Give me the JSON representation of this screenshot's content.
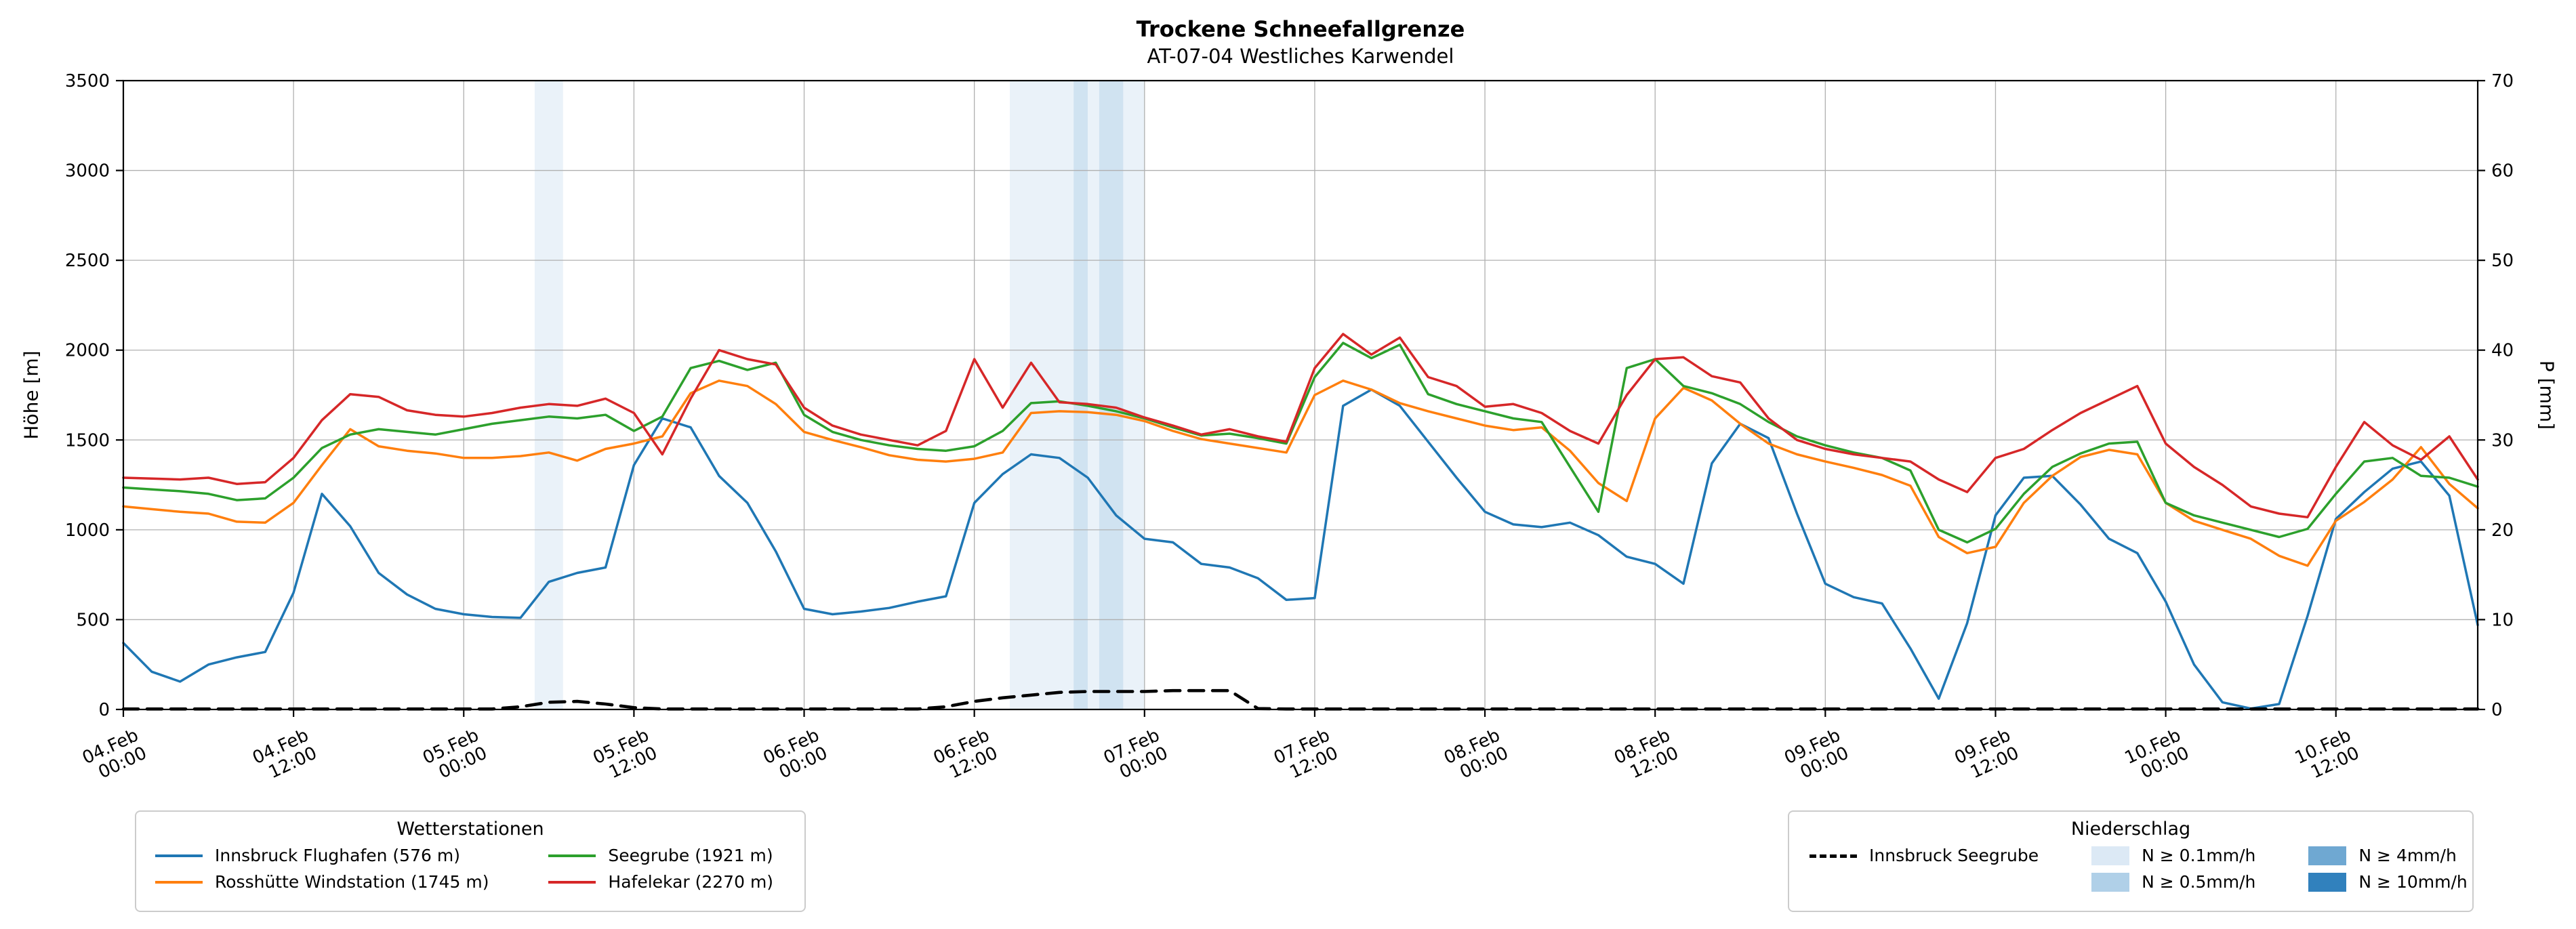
{
  "title": "Trockene Schneefallgrenze",
  "subtitle": "AT-07-04 Westliches Karwendel",
  "axes": {
    "y_left": {
      "label": "Höhe [m]",
      "min": 0,
      "max": 3500,
      "step": 500
    },
    "y_right": {
      "label": "P [mm]",
      "min": 0,
      "max": 70,
      "step": 10
    },
    "x": {
      "min_hours": 0,
      "max_hours": 166,
      "tick_hours": [
        0,
        12,
        24,
        36,
        48,
        60,
        72,
        84,
        96,
        108,
        120,
        132,
        144,
        156
      ],
      "tick_labels": [
        [
          "04.Feb",
          "00:00"
        ],
        [
          "04.Feb",
          "12:00"
        ],
        [
          "05.Feb",
          "00:00"
        ],
        [
          "05.Feb",
          "12:00"
        ],
        [
          "06.Feb",
          "00:00"
        ],
        [
          "06.Feb",
          "12:00"
        ],
        [
          "07.Feb",
          "00:00"
        ],
        [
          "07.Feb",
          "12:00"
        ],
        [
          "08.Feb",
          "00:00"
        ],
        [
          "08.Feb",
          "12:00"
        ],
        [
          "09.Feb",
          "00:00"
        ],
        [
          "09.Feb",
          "12:00"
        ],
        [
          "10.Feb",
          "00:00"
        ],
        [
          "10.Feb",
          "12:00"
        ]
      ]
    }
  },
  "legend_stations": {
    "title": "Wetterstationen",
    "items": [
      {
        "label": "Innsbruck Flughafen (576 m)",
        "color": "#1f77b4"
      },
      {
        "label": "Rosshütte Windstation (1745 m)",
        "color": "#ff7f0e"
      },
      {
        "label": "Seegrube (1921 m)",
        "color": "#2ca02c"
      },
      {
        "label": "Hafelekar (2270 m)",
        "color": "#d62728"
      }
    ]
  },
  "legend_precip": {
    "title": "Niederschlag",
    "line_item": {
      "label": "Innsbruck Seegrube",
      "color": "#000000"
    },
    "patch_items": [
      {
        "label": "N ≥ 0.1mm/h",
        "color": "#dce9f5"
      },
      {
        "label": "N ≥ 0.5mm/h",
        "color": "#b0d0e8"
      },
      {
        "label": "N ≥ 4mm/h",
        "color": "#6fa8d2"
      },
      {
        "label": "N ≥ 10mm/h",
        "color": "#3181bd"
      }
    ]
  },
  "chart_data": {
    "type": "line",
    "x_unit": "hours since 04.Feb 00:00",
    "x_hours": [
      0,
      2,
      4,
      6,
      8,
      10,
      12,
      14,
      16,
      18,
      20,
      22,
      24,
      26,
      28,
      30,
      32,
      34,
      36,
      38,
      40,
      42,
      44,
      46,
      48,
      50,
      52,
      54,
      56,
      58,
      60,
      62,
      64,
      66,
      68,
      70,
      72,
      74,
      76,
      78,
      80,
      82,
      84,
      86,
      88,
      90,
      92,
      94,
      96,
      98,
      100,
      102,
      104,
      106,
      108,
      110,
      112,
      114,
      116,
      118,
      120,
      122,
      124,
      126,
      128,
      130,
      132,
      134,
      136,
      138,
      140,
      142,
      144,
      146,
      148,
      150,
      152,
      154,
      156,
      158,
      160,
      162,
      164,
      166
    ],
    "series": [
      {
        "id": "innsbruck-flughafen",
        "name": "Innsbruck Flughafen (576 m)",
        "color": "#1f77b4",
        "axis": "left",
        "dash": false,
        "values": [
          370,
          210,
          155,
          250,
          290,
          320,
          650,
          1200,
          1020,
          760,
          640,
          560,
          530,
          515,
          510,
          710,
          760,
          790,
          1360,
          1620,
          1570,
          1300,
          1150,
          880,
          560,
          530,
          545,
          565,
          600,
          630,
          1150,
          1310,
          1420,
          1400,
          1290,
          1080,
          950,
          930,
          810,
          790,
          730,
          610,
          620,
          1690,
          1780,
          1690,
          1490,
          1290,
          1100,
          1030,
          1015,
          1040,
          970,
          850,
          810,
          700,
          1370,
          1590,
          1510,
          1090,
          700,
          625,
          590,
          340,
          60,
          480,
          1080,
          1290,
          1300,
          1140,
          950,
          870,
          600,
          250,
          40,
          5,
          30,
          520,
          1060,
          1210,
          1340,
          1380,
          1190,
          470
        ]
      },
      {
        "id": "rosshuette-windstation",
        "name": "Rosshütte Windstation (1745 m)",
        "color": "#ff7f0e",
        "axis": "left",
        "dash": false,
        "values": [
          1130,
          1115,
          1100,
          1090,
          1045,
          1040,
          1150,
          1360,
          1560,
          1465,
          1440,
          1425,
          1400,
          1400,
          1410,
          1430,
          1385,
          1450,
          1480,
          1520,
          1760,
          1830,
          1800,
          1700,
          1545,
          1500,
          1460,
          1415,
          1390,
          1380,
          1395,
          1430,
          1650,
          1660,
          1655,
          1640,
          1605,
          1550,
          1505,
          1480,
          1455,
          1430,
          1750,
          1830,
          1780,
          1705,
          1660,
          1620,
          1580,
          1555,
          1570,
          1440,
          1260,
          1160,
          1620,
          1790,
          1720,
          1590,
          1480,
          1420,
          1380,
          1345,
          1305,
          1245,
          960,
          870,
          905,
          1150,
          1300,
          1405,
          1445,
          1420,
          1150,
          1050,
          1000,
          950,
          855,
          800,
          1050,
          1155,
          1280,
          1460,
          1255,
          1120
        ]
      },
      {
        "id": "seegrube",
        "name": "Seegrube (1921 m)",
        "color": "#2ca02c",
        "axis": "left",
        "dash": false,
        "values": [
          1235,
          1225,
          1215,
          1200,
          1165,
          1175,
          1290,
          1455,
          1530,
          1560,
          1545,
          1530,
          1560,
          1590,
          1610,
          1630,
          1620,
          1640,
          1550,
          1630,
          1900,
          1940,
          1890,
          1930,
          1640,
          1545,
          1500,
          1470,
          1450,
          1440,
          1465,
          1550,
          1705,
          1715,
          1690,
          1660,
          1620,
          1570,
          1525,
          1535,
          1510,
          1480,
          1850,
          2040,
          1955,
          2030,
          1755,
          1700,
          1660,
          1620,
          1600,
          1350,
          1100,
          1900,
          1950,
          1800,
          1760,
          1700,
          1600,
          1520,
          1470,
          1430,
          1400,
          1330,
          1000,
          930,
          1005,
          1200,
          1350,
          1425,
          1480,
          1490,
          1150,
          1080,
          1040,
          1000,
          960,
          1005,
          1200,
          1380,
          1400,
          1300,
          1290,
          1240
        ]
      },
      {
        "id": "hafelekar",
        "name": "Hafelekar (2270 m)",
        "color": "#d62728",
        "axis": "left",
        "dash": false,
        "values": [
          1290,
          1285,
          1280,
          1290,
          1255,
          1265,
          1400,
          1610,
          1755,
          1740,
          1665,
          1640,
          1630,
          1650,
          1680,
          1700,
          1690,
          1730,
          1650,
          1420,
          1730,
          2000,
          1950,
          1920,
          1680,
          1580,
          1530,
          1500,
          1470,
          1550,
          1950,
          1680,
          1930,
          1710,
          1700,
          1680,
          1625,
          1580,
          1530,
          1560,
          1520,
          1490,
          1900,
          2090,
          1975,
          2070,
          1850,
          1800,
          1685,
          1700,
          1650,
          1550,
          1480,
          1750,
          1950,
          1960,
          1855,
          1820,
          1620,
          1500,
          1450,
          1420,
          1400,
          1380,
          1280,
          1210,
          1400,
          1450,
          1555,
          1650,
          1725,
          1800,
          1480,
          1350,
          1250,
          1130,
          1090,
          1070,
          1350,
          1600,
          1470,
          1390,
          1520,
          1280
        ]
      },
      {
        "id": "innsbruck-seegrube-precip",
        "name": "Innsbruck Seegrube",
        "color": "#000000",
        "axis": "right",
        "dash": true,
        "values": [
          0.05,
          0.05,
          0.05,
          0.05,
          0.05,
          0.05,
          0.05,
          0.05,
          0.05,
          0.05,
          0.05,
          0.05,
          0.05,
          0.05,
          0.3,
          0.8,
          0.9,
          0.6,
          0.2,
          0.05,
          0.05,
          0.05,
          0.05,
          0.05,
          0.05,
          0.05,
          0.05,
          0.05,
          0.05,
          0.3,
          0.9,
          1.3,
          1.6,
          1.9,
          2.0,
          2.0,
          2.0,
          2.1,
          2.1,
          2.1,
          0.1,
          0.05,
          0.05,
          0.05,
          0.05,
          0.05,
          0.05,
          0.05,
          0.05,
          0.05,
          0.05,
          0.05,
          0.05,
          0.05,
          0.05,
          0.05,
          0.05,
          0.05,
          0.05,
          0.05,
          0.05,
          0.05,
          0.05,
          0.05,
          0.05,
          0.05,
          0.05,
          0.05,
          0.05,
          0.05,
          0.05,
          0.05,
          0.05,
          0.05,
          0.05,
          0.05,
          0.05,
          0.05,
          0.05,
          0.05,
          0.05,
          0.05,
          0.05,
          0.05
        ]
      }
    ],
    "precip_spans": [
      {
        "start_hour": 29,
        "end_hour": 31,
        "level": "0.1"
      },
      {
        "start_hour": 62.5,
        "end_hour": 67,
        "level": "0.1"
      },
      {
        "start_hour": 67,
        "end_hour": 68,
        "level": "0.5"
      },
      {
        "start_hour": 68,
        "end_hour": 68.8,
        "level": "0.1"
      },
      {
        "start_hour": 68.8,
        "end_hour": 70.5,
        "level": "0.5"
      },
      {
        "start_hour": 70.5,
        "end_hour": 72,
        "level": "0.1"
      }
    ],
    "level_colors": {
      "0.1": "#dce9f5",
      "0.5": "#b0d0e8",
      "4": "#6fa8d2",
      "10": "#3181bd"
    },
    "grid": true,
    "legend_position": "below"
  }
}
